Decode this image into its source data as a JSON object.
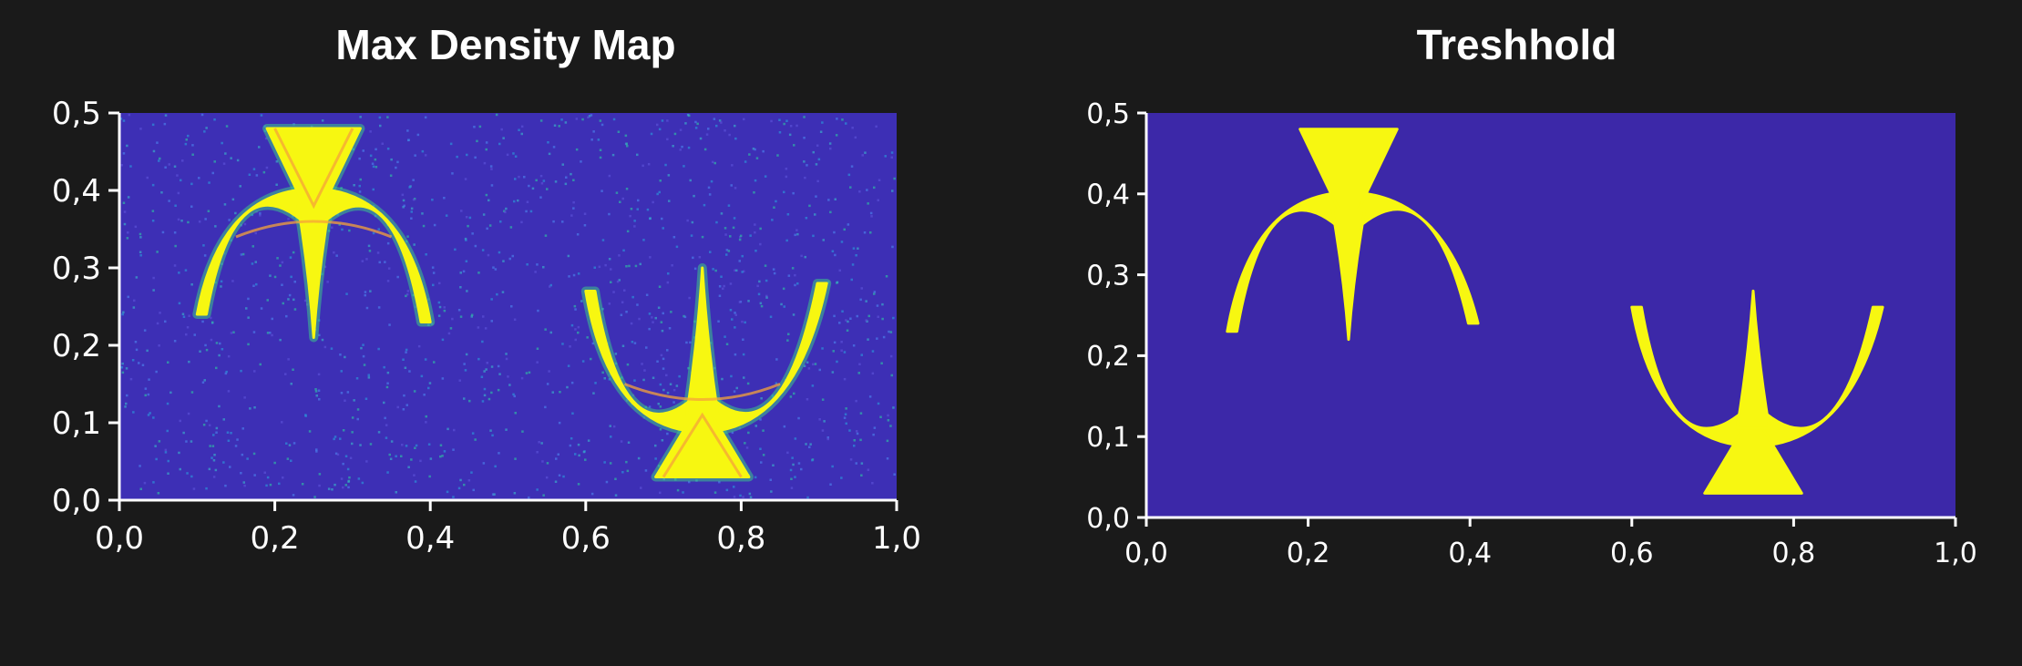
{
  "chart_data": [
    {
      "type": "heatmap",
      "title": "Max Density Map",
      "xlabel": "",
      "ylabel": "",
      "xlim": [
        0.0,
        1.0
      ],
      "ylim": [
        0.0,
        0.5
      ],
      "x_ticks": [
        "0,0",
        "0,2",
        "0,4",
        "0,6",
        "0,8",
        "1,0"
      ],
      "y_ticks": [
        "0,0",
        "0,1",
        "0,2",
        "0,3",
        "0,4",
        "0,5"
      ],
      "x_tick_values": [
        0.0,
        0.2,
        0.4,
        0.6,
        0.8,
        1.0
      ],
      "y_tick_values": [
        0.0,
        0.1,
        0.2,
        0.3,
        0.4,
        0.5
      ],
      "background_color": "#3d2fb5",
      "high_color": "#f7f711",
      "mid_color": "#f5a33a",
      "grid": false,
      "shapes": [
        {
          "center_x": 0.25,
          "apex_y": 0.48,
          "tail_y": 0.21,
          "arm_tip_left": [
            0.1,
            0.24
          ],
          "arm_tip_right": [
            0.4,
            0.23
          ],
          "orientation": "down"
        },
        {
          "center_x": 0.75,
          "apex_y": 0.03,
          "tail_y": 0.3,
          "arm_tip_left": [
            0.6,
            0.27
          ],
          "arm_tip_right": [
            0.91,
            0.28
          ],
          "orientation": "up"
        }
      ]
    },
    {
      "type": "heatmap",
      "title": "Treshhold",
      "xlabel": "",
      "ylabel": "",
      "xlim": [
        0.0,
        1.0
      ],
      "ylim": [
        0.0,
        0.5
      ],
      "x_ticks": [
        "0,0",
        "0,2",
        "0,4",
        "0,6",
        "0,8",
        "1,0"
      ],
      "y_ticks": [
        "0,0",
        "0,1",
        "0,2",
        "0,3",
        "0,4",
        "0,5"
      ],
      "x_tick_values": [
        0.0,
        0.2,
        0.4,
        0.6,
        0.8,
        1.0
      ],
      "y_tick_values": [
        0.0,
        0.1,
        0.2,
        0.3,
        0.4,
        0.5
      ],
      "background_color": "#3c28a8",
      "high_color": "#f7f711",
      "grid": false,
      "shapes": [
        {
          "center_x": 0.25,
          "apex_y": 0.48,
          "tail_y": 0.22,
          "arm_tip_left": [
            0.1,
            0.23
          ],
          "arm_tip_right": [
            0.41,
            0.24
          ],
          "orientation": "down"
        },
        {
          "center_x": 0.75,
          "apex_y": 0.03,
          "tail_y": 0.28,
          "arm_tip_left": [
            0.6,
            0.26
          ],
          "arm_tip_right": [
            0.91,
            0.26
          ],
          "orientation": "up"
        }
      ]
    }
  ]
}
